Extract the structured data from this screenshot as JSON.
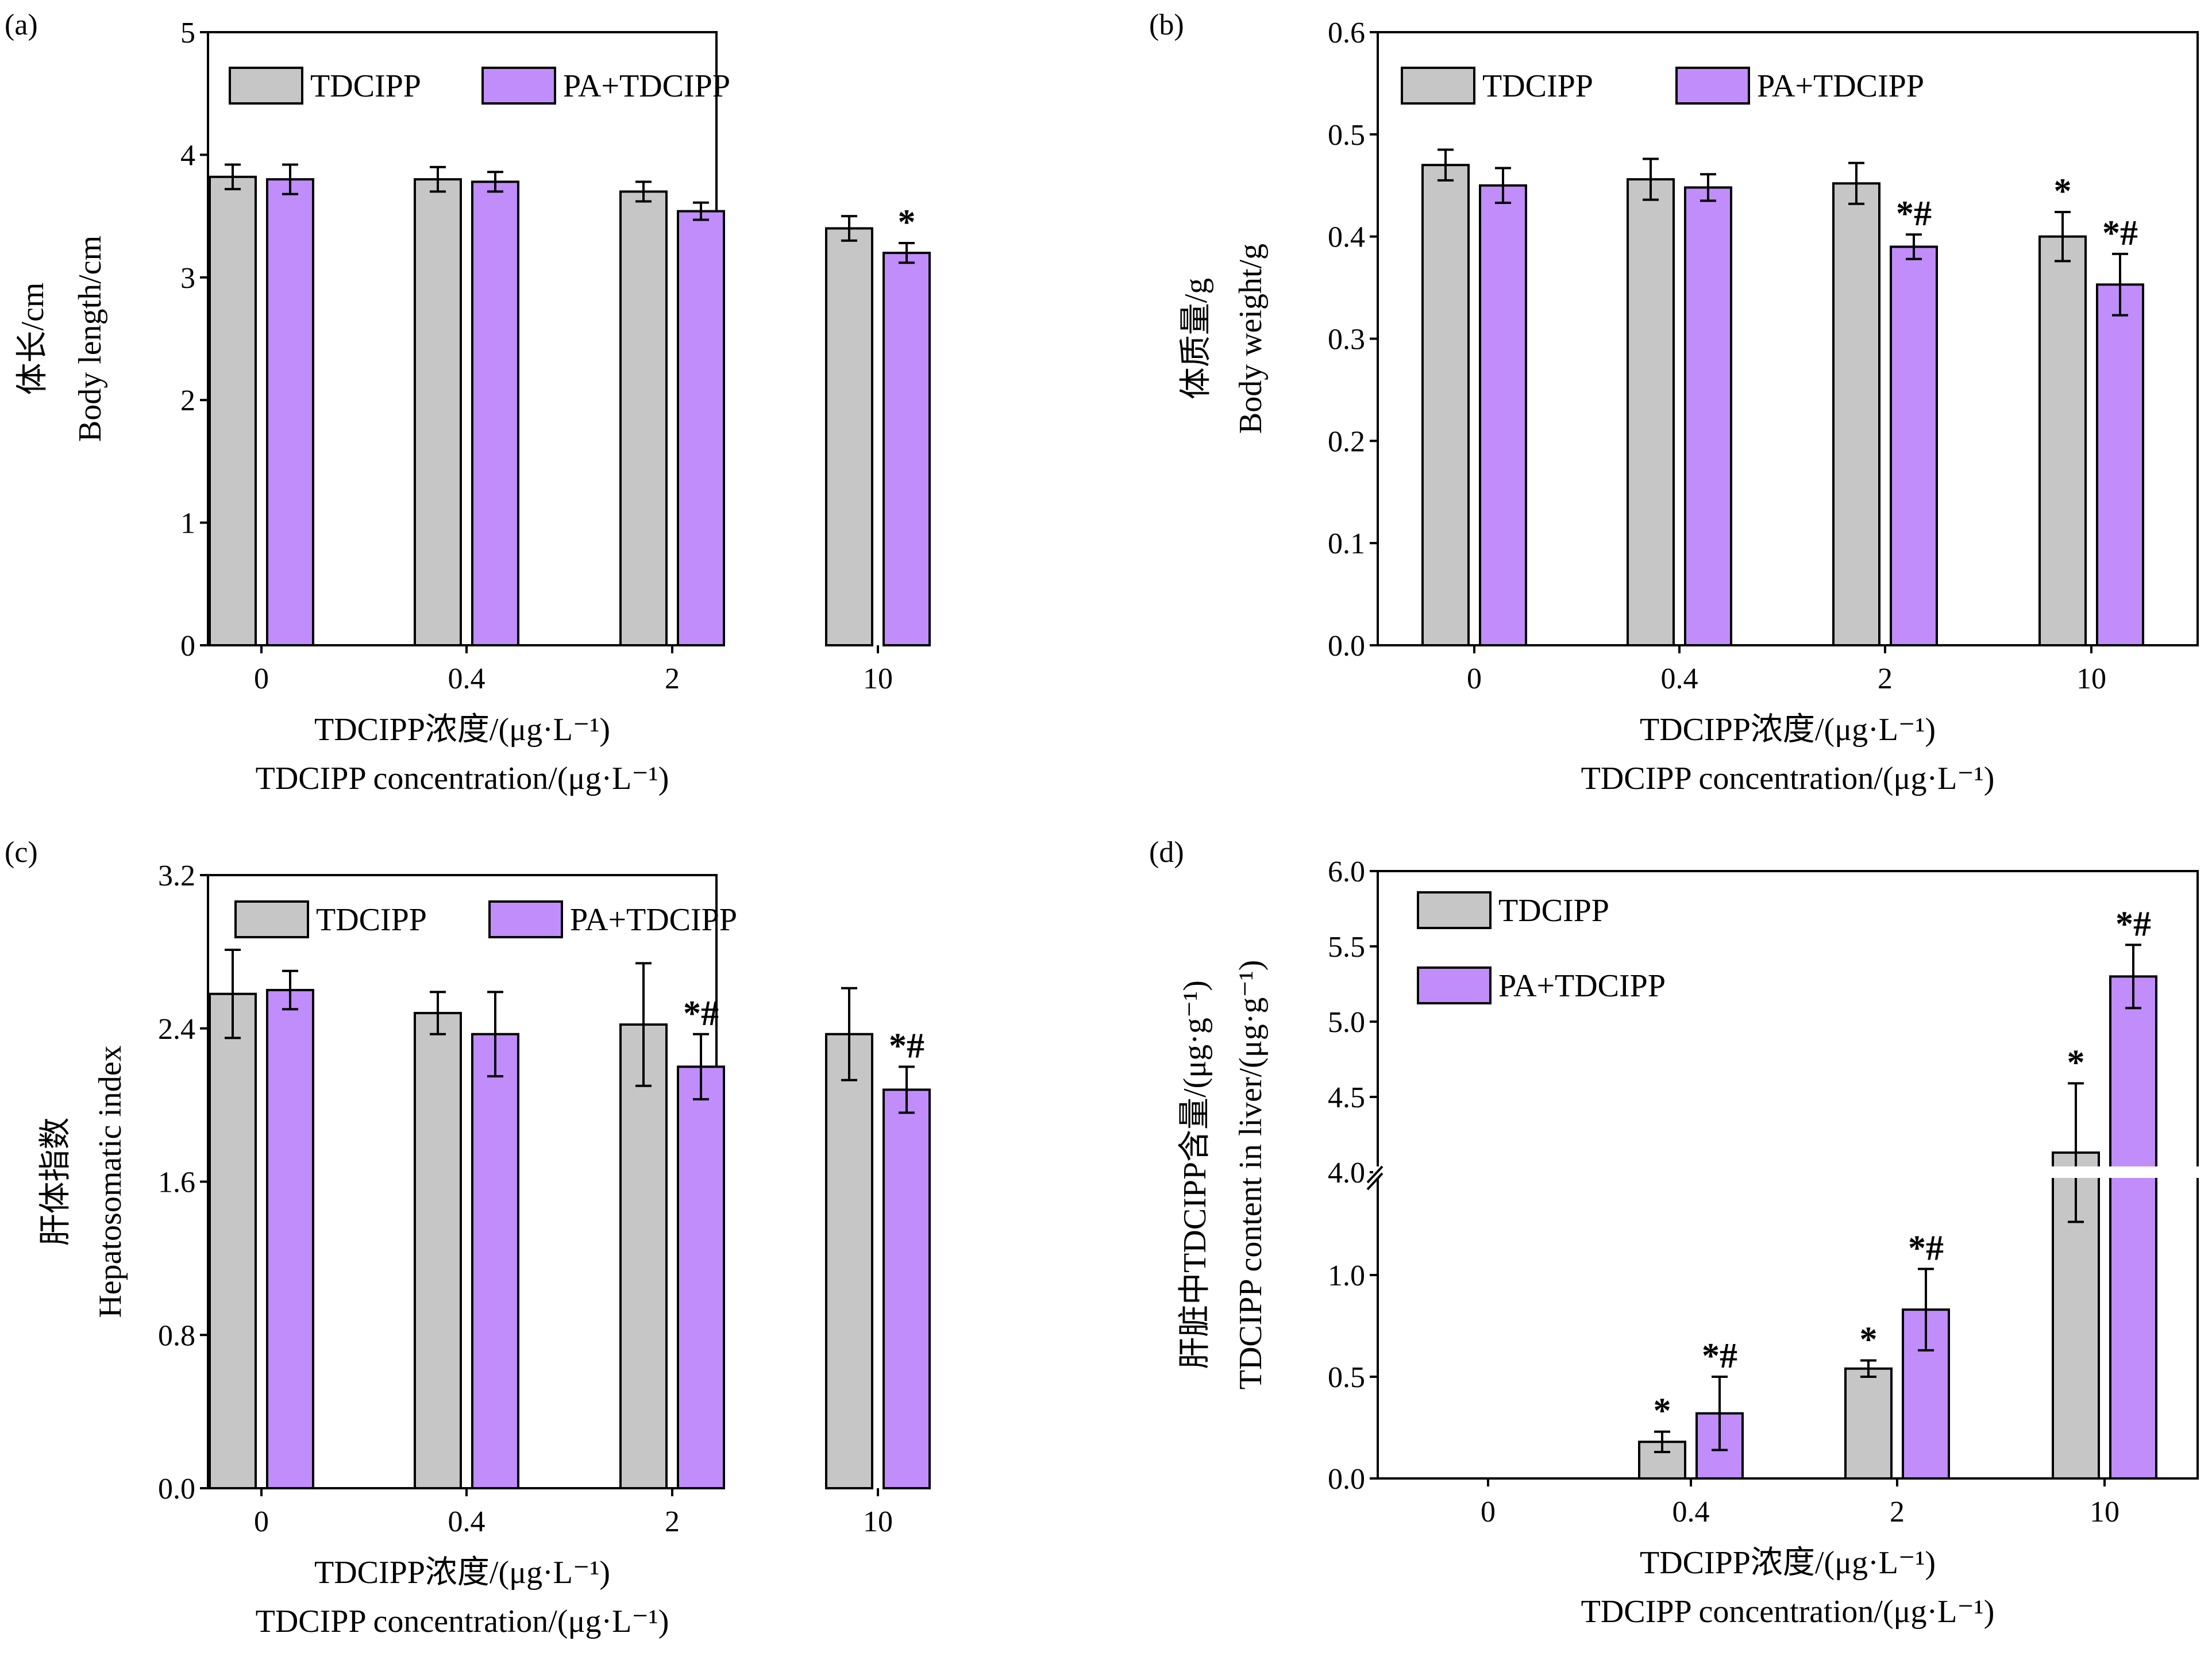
{
  "colors": {
    "tdcipp": "#c6c6c6",
    "pa_tdcipp": "#c08dfb",
    "axis": "#000000",
    "break_gap": "#ffffff"
  },
  "shared": {
    "categories": [
      "0",
      "0.4",
      "2",
      "10"
    ],
    "xlabel_cn": "TDCIPP浓度/(μg·L⁻¹)",
    "xlabel_en": "TDCIPP concentration/(μg·L⁻¹)",
    "legend": [
      "TDCIPP",
      "PA+TDCIPP"
    ]
  },
  "chart_data": [
    {
      "panel": "(a)",
      "type": "bar",
      "ylabel_cn": "体长/cm",
      "ylabel_en": "Body length/cm",
      "ylim": [
        0,
        5
      ],
      "yticks": [
        "0",
        "1",
        "2",
        "3",
        "4",
        "5"
      ],
      "legend_position": "top",
      "legend_layout": "row",
      "series": [
        {
          "name": "TDCIPP",
          "values": [
            3.82,
            3.8,
            3.7,
            3.4
          ],
          "errors": [
            0.1,
            0.1,
            0.08,
            0.1
          ],
          "marks": [
            "",
            "",
            "",
            ""
          ]
        },
        {
          "name": "PA+TDCIPP",
          "values": [
            3.8,
            3.78,
            3.54,
            3.2
          ],
          "errors": [
            0.12,
            0.08,
            0.07,
            0.08
          ],
          "marks": [
            "",
            "",
            "",
            "*"
          ]
        }
      ]
    },
    {
      "panel": "(b)",
      "type": "bar",
      "ylabel_cn": "体质量/g",
      "ylabel_en": "Body weight/g",
      "ylim": [
        0,
        0.6
      ],
      "yticks": [
        "0.0",
        "0.1",
        "0.2",
        "0.3",
        "0.4",
        "0.5",
        "0.6"
      ],
      "legend_position": "top",
      "legend_layout": "row",
      "series": [
        {
          "name": "TDCIPP",
          "values": [
            0.47,
            0.456,
            0.452,
            0.4
          ],
          "errors": [
            0.015,
            0.02,
            0.02,
            0.024
          ],
          "marks": [
            "",
            "",
            "",
            "*"
          ]
        },
        {
          "name": "PA+TDCIPP",
          "values": [
            0.45,
            0.448,
            0.39,
            0.353
          ],
          "errors": [
            0.017,
            0.013,
            0.012,
            0.03
          ],
          "marks": [
            "",
            "",
            "*#",
            "*#"
          ]
        }
      ]
    },
    {
      "panel": "(c)",
      "type": "bar",
      "ylabel_cn": "肝体指数",
      "ylabel_en": "Hepatosomatic index",
      "ylim": [
        0,
        3.2
      ],
      "yticks": [
        "0.0",
        "0.8",
        "1.6",
        "2.4",
        "3.2"
      ],
      "legend_position": "top",
      "legend_layout": "row",
      "series": [
        {
          "name": "TDCIPP",
          "values": [
            2.58,
            2.48,
            2.42,
            2.37
          ],
          "errors": [
            0.23,
            0.11,
            0.32,
            0.24
          ],
          "marks": [
            "",
            "",
            "",
            ""
          ]
        },
        {
          "name": "PA+TDCIPP",
          "values": [
            2.6,
            2.37,
            2.2,
            2.08
          ],
          "errors": [
            0.1,
            0.22,
            0.17,
            0.12
          ],
          "marks": [
            "",
            "",
            "*#",
            "*#"
          ]
        }
      ]
    },
    {
      "panel": "(d)",
      "type": "bar",
      "ylabel_cn": "肝脏中TDCIPP含量/(μg·g⁻¹)",
      "ylabel_en": "TDCIPP content in liver/(μg·g⁻¹)",
      "ylim": [
        0,
        6
      ],
      "axis_break": [
        1.5,
        4.0
      ],
      "yticks_lower": [
        "0.0",
        "0.5",
        "1.0"
      ],
      "yticks_upper": [
        "4.0",
        "4.5",
        "5.0",
        "5.5",
        "6.0"
      ],
      "legend_position": "top-left",
      "legend_layout": "column",
      "series": [
        {
          "name": "TDCIPP",
          "values": [
            0,
            0.18,
            0.54,
            4.13
          ],
          "errors": [
            0,
            0.05,
            0.04,
            0.46
          ],
          "marks": [
            "",
            "*",
            "*",
            "*"
          ]
        },
        {
          "name": "PA+TDCIPP",
          "values": [
            0,
            0.32,
            0.83,
            5.3
          ],
          "errors": [
            0,
            0.18,
            0.2,
            0.21
          ],
          "marks": [
            "",
            "*#",
            "*#",
            "*#"
          ]
        }
      ]
    }
  ]
}
